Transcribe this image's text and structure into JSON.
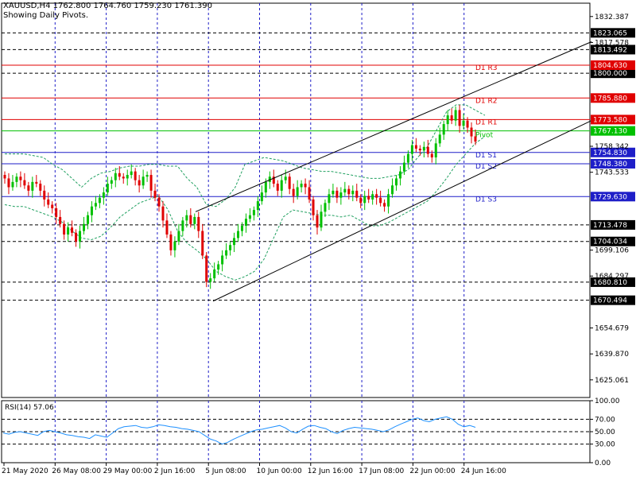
{
  "header": {
    "symbol_line": "XAUUSD,H4  1762.800 1764.760 1759.230 1761.390",
    "indicator_line": "Showing Daily Pivots."
  },
  "rsi_panel": {
    "label": "RSI(14) 57.06",
    "value": 57.06,
    "levels": [
      70,
      50,
      30
    ],
    "ticks": [
      "100.00",
      "70.00",
      "50.00",
      "30.00",
      "0.00"
    ]
  },
  "colors": {
    "bull": "#00c000",
    "bear": "#e00000",
    "grid": "#1e1ec8",
    "pivot_line": "#00c000",
    "resistance_line": "#e00000",
    "support_line": "#1e1ec8",
    "bollinger": "#20a060",
    "rsi_line": "#1e90ff",
    "channel": "#000000"
  },
  "chart_data": {
    "type": "candlestick",
    "symbol": "XAUUSD",
    "timeframe": "H4",
    "ohlc_last": {
      "open": 1762.8,
      "high": 1764.76,
      "low": 1759.23,
      "close": 1761.39
    },
    "ylim": [
      1615,
      1840
    ],
    "y_ticks": [
      "1832.387",
      "1817.578",
      "1699.106",
      "1684.297",
      "1654.679",
      "1639.870",
      "1625.061"
    ],
    "x_tick_labels": [
      "21 May 2020",
      "26 May 08:00",
      "29 May 00:00",
      "2 Jun 16:00",
      "5 Jun 08:00",
      "10 Jun 00:00",
      "12 Jun 16:00",
      "17 Jun 08:00",
      "22 Jun 00:00",
      "24 Jun 16:00"
    ],
    "pivots": [
      {
        "label": "D1 R3",
        "value": 1804.63,
        "price_label": "1804.630",
        "kind": "resistance"
      },
      {
        "label": "D1 R2",
        "value": 1785.88,
        "price_label": "1785.880",
        "kind": "resistance"
      },
      {
        "label": "D1 R1",
        "value": 1773.58,
        "price_label": "1773.580",
        "kind": "resistance"
      },
      {
        "label": "Pivot",
        "value": 1767.13,
        "price_label": "1767.130",
        "kind": "pivot"
      },
      {
        "label": "D1 S1",
        "value": 1754.83,
        "price_label": "1754.830",
        "kind": "support"
      },
      {
        "label": "D1 S2",
        "value": 1748.38,
        "price_label": "1748.380",
        "kind": "support"
      },
      {
        "label": "D1 S3",
        "value": 1729.63,
        "price_label": "1729.630",
        "kind": "support"
      }
    ],
    "dashed_levels": [
      {
        "value": 1823.065,
        "label": "1823.065"
      },
      {
        "value": 1813.492,
        "label": "1813.492"
      },
      {
        "value": 1800.0,
        "label": "1800.000"
      },
      {
        "value": 1713.478,
        "label": "1713.478"
      },
      {
        "value": 1704.034,
        "label": "1704.034"
      },
      {
        "value": 1680.81,
        "label": "1680.810"
      },
      {
        "value": 1670.494,
        "label": "1670.494"
      }
    ],
    "plain_axis_labels": [
      {
        "value": 1758.342,
        "label": "1758.342"
      },
      {
        "value": 1743.533,
        "label": "1743.533"
      }
    ],
    "bid_price": 1761.39,
    "closes": [
      1740,
      1735,
      1738,
      1741,
      1739,
      1736,
      1733,
      1738,
      1737,
      1733,
      1728,
      1725,
      1723,
      1718,
      1714,
      1708,
      1712,
      1709,
      1704,
      1710,
      1714,
      1719,
      1724,
      1726,
      1729,
      1732,
      1737,
      1739,
      1743,
      1741,
      1740,
      1742,
      1744,
      1739,
      1736,
      1741,
      1742,
      1733,
      1729,
      1724,
      1716,
      1708,
      1699,
      1704,
      1710,
      1716,
      1719,
      1714,
      1718,
      1710,
      1696,
      1681,
      1683,
      1688,
      1691,
      1696,
      1699,
      1702,
      1706,
      1710,
      1713,
      1717,
      1719,
      1722,
      1727,
      1732,
      1738,
      1741,
      1737,
      1733,
      1739,
      1741,
      1734,
      1730,
      1735,
      1737,
      1735,
      1728,
      1719,
      1712,
      1721,
      1726,
      1731,
      1733,
      1729,
      1732,
      1734,
      1731,
      1733,
      1729,
      1726,
      1730,
      1728,
      1731,
      1729,
      1726,
      1724,
      1731,
      1736,
      1740,
      1744,
      1749,
      1754,
      1759,
      1757,
      1756,
      1758,
      1754,
      1752,
      1760,
      1765,
      1771,
      1776,
      1773,
      1779,
      1770,
      1773,
      1769,
      1764,
      1761
    ],
    "bollinger": {
      "upper": [
        1754,
        1754,
        1754,
        1753,
        1752,
        1748,
        1745,
        1740,
        1735,
        1740,
        1743,
        1744,
        1746,
        1747,
        1747,
        1748,
        1748,
        1747,
        1747,
        1740,
        1735,
        1725,
        1724,
        1728,
        1735,
        1748,
        1750,
        1752,
        1751,
        1750,
        1748,
        1746,
        1745,
        1744,
        1744,
        1743,
        1742,
        1741,
        1740,
        1740,
        1741,
        1742,
        1745,
        1752,
        1758,
        1768,
        1778,
        1782,
        1782,
        1779,
        1776
      ],
      "lower": [
        1725,
        1724,
        1724,
        1722,
        1720,
        1718,
        1715,
        1710,
        1706,
        1705,
        1707,
        1712,
        1718,
        1722,
        1726,
        1728,
        1730,
        1722,
        1710,
        1703,
        1699,
        1694,
        1687,
        1684,
        1682,
        1684,
        1687,
        1694,
        1706,
        1718,
        1722,
        1721,
        1720,
        1719,
        1719,
        1718,
        1719,
        1716,
        1713,
        1713,
        1715,
        1718,
        1721,
        1724,
        1727,
        1733,
        1740,
        1748,
        1754,
        1760,
        1764
      ]
    },
    "channel": [
      {
        "name": "upper",
        "from": {
          "x": "5 Jun 04:00",
          "y": 1721
        },
        "to": {
          "x": "right-edge",
          "y": 1818
        }
      },
      {
        "name": "lower",
        "from": {
          "x": "5 Jun 08:00",
          "y": 1670
        },
        "to": {
          "x": "right-edge",
          "y": 1773
        }
      }
    ],
    "rsi": [
      48,
      46,
      49,
      50,
      48,
      46,
      44,
      50,
      52,
      50,
      48,
      45,
      44,
      42,
      41,
      39,
      45,
      43,
      41,
      48,
      55,
      58,
      59,
      60,
      57,
      56,
      58,
      61,
      60,
      58,
      57,
      55,
      54,
      52,
      50,
      44,
      38,
      35,
      30,
      33,
      38,
      42,
      46,
      50,
      53,
      54,
      56,
      58,
      60,
      56,
      50,
      48,
      54,
      59,
      60,
      57,
      55,
      50,
      47,
      52,
      55,
      57,
      56,
      55,
      54,
      52,
      50,
      53,
      58,
      62,
      66,
      70,
      72,
      68,
      66,
      70,
      72,
      74,
      70,
      62,
      58,
      60,
      57
    ]
  }
}
